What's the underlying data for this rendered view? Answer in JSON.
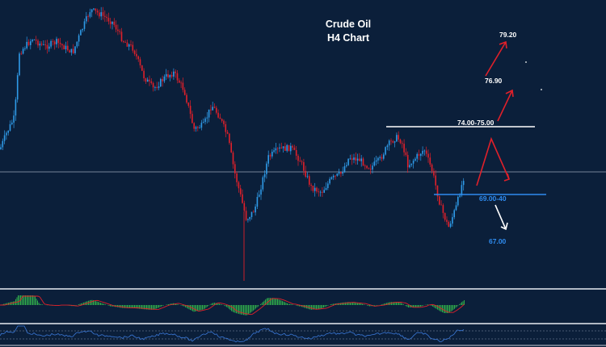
{
  "chart_data": {
    "type": "candlestick",
    "title": "Crude Oil",
    "subtitle": "H4 Chart",
    "price_range": [
      64.0,
      81.0
    ],
    "levels": [
      {
        "label": "79.20",
        "value": 79.2,
        "color": "#ffffff"
      },
      {
        "label": "76.90",
        "value": 76.9,
        "color": "#ffffff"
      },
      {
        "label": "74.00-75.00",
        "value": 74.5,
        "color": "#ffffff"
      },
      {
        "label": "69.00-40",
        "value": 69.2,
        "color": "#2f8cf0"
      },
      {
        "label": "67.00",
        "value": 67.0,
        "color": "#2f8cf0"
      }
    ],
    "colors": {
      "up": "#2f9be8",
      "down": "#e0202a",
      "background": "#0b1f3a",
      "hist": "#2fa84a",
      "signal": "#e0202a",
      "osc": "#3a78d8"
    },
    "grid": false,
    "indicator_panels": 2
  }
}
